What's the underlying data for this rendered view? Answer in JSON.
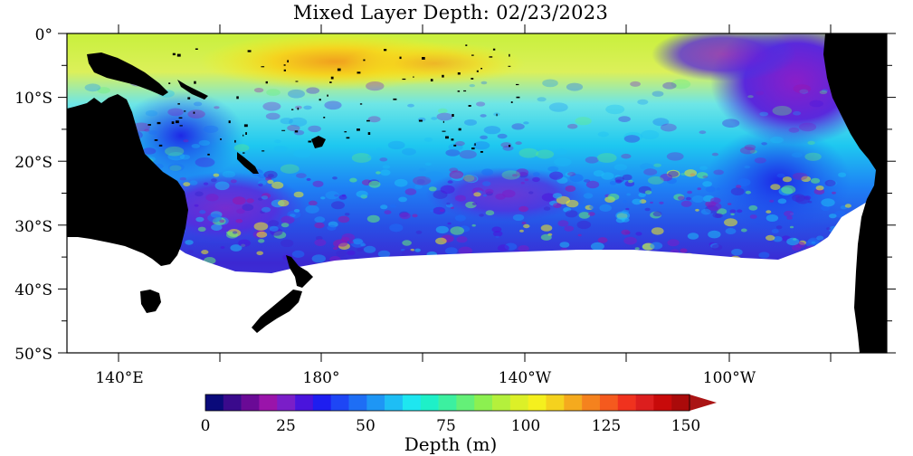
{
  "title": "Mixed Layer Depth: 02/23/2023",
  "map": {
    "y_axis_labels": [
      "0°",
      "10°S",
      "20°S",
      "30°S",
      "40°S",
      "50°S"
    ],
    "x_axis_labels": [
      "140°E",
      "180°",
      "140°W",
      "100°W"
    ],
    "land_color": "#000000",
    "nodata_color": "#ffffff"
  },
  "colorbar": {
    "tick_labels": [
      "0",
      "25",
      "50",
      "75",
      "100",
      "125",
      "150"
    ],
    "label": "Depth (m)",
    "colors": [
      "#0a0a7a",
      "#3a0a8c",
      "#6a0a96",
      "#9a14aa",
      "#7a1ec8",
      "#4a14dc",
      "#1e1ef0",
      "#1e46f5",
      "#1e6ef5",
      "#1e96f5",
      "#1ebef5",
      "#1ee6f0",
      "#1ef0c8",
      "#3cf0a0",
      "#64f078",
      "#8cf050",
      "#b4f03c",
      "#dcf028",
      "#f5f01e",
      "#f5d21e",
      "#f5aa1e",
      "#f5821e",
      "#f55a1e",
      "#f0321e",
      "#dc1e1e",
      "#c80a0a",
      "#aa0a0a"
    ],
    "extend_color": "#aa1414"
  }
}
